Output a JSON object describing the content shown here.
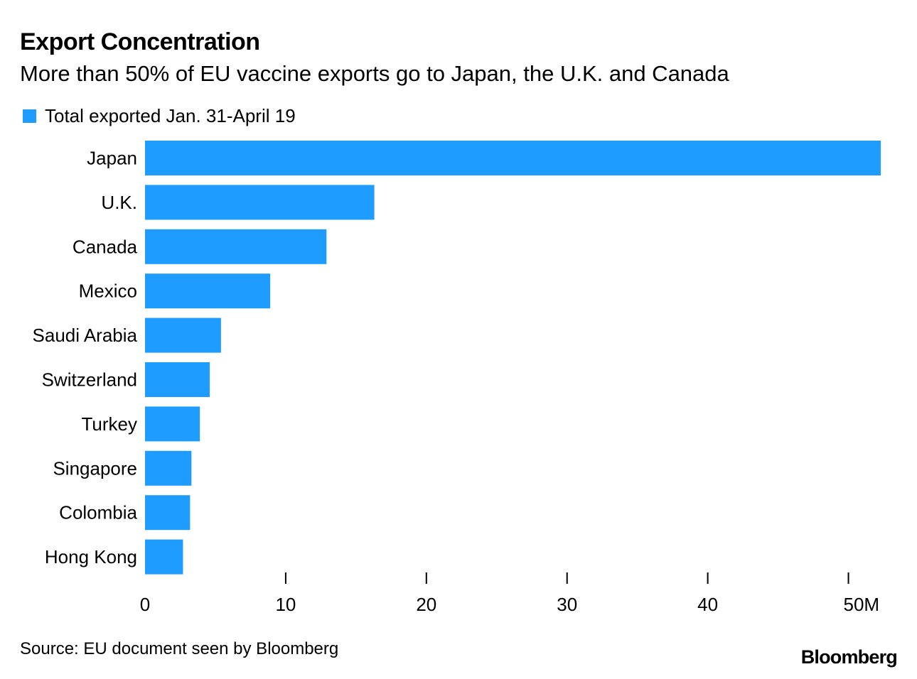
{
  "title": "Export Concentration",
  "subtitle": "More than 50% of EU vaccine exports go to Japan, the U.K. and Canada",
  "source": "Source: EU document seen by Bloomberg",
  "brand": "Bloomberg",
  "colors": {
    "bar": "#1e9cff",
    "text": "#000000",
    "tick": "#000000"
  },
  "chart_data": {
    "type": "bar",
    "orientation": "horizontal",
    "title": "Export Concentration",
    "subtitle": "More than 50% of EU vaccine exports go to Japan, the U.K. and Canada",
    "legend": [
      {
        "label": "Total exported Jan. 31-April 19",
        "color": "#1e9cff"
      }
    ],
    "legend_position": "top-left",
    "categories": [
      "Japan",
      "U.K.",
      "Canada",
      "Mexico",
      "Saudi Arabia",
      "Switzerland",
      "Turkey",
      "Singapore",
      "Colombia",
      "Hong Kong"
    ],
    "series": [
      {
        "name": "Total exported Jan. 31-April 19",
        "values": [
          52.3,
          16.3,
          12.9,
          8.9,
          5.4,
          4.6,
          3.9,
          3.3,
          3.2,
          2.7
        ]
      }
    ],
    "xlim": [
      0,
      52.5
    ],
    "xticks": [
      0,
      10,
      20,
      30,
      40,
      50
    ],
    "xtick_labels": [
      "0",
      "10",
      "20",
      "30",
      "40",
      "50M"
    ],
    "xlabel": "",
    "ylabel": "",
    "grid": false
  }
}
